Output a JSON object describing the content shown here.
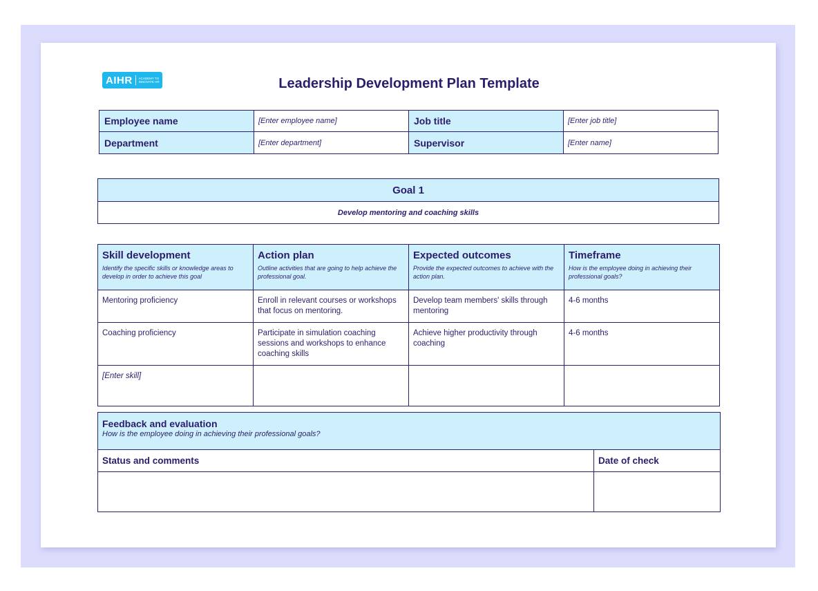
{
  "logo": {
    "text": "AIHR",
    "tagline": "ACADEMY TO INNOVATE HR"
  },
  "title": "Leadership Development Plan Template",
  "info": {
    "employee_label": "Employee name",
    "employee_value": "[Enter employee name]",
    "job_label": "Job title",
    "job_value": "[Enter job title]",
    "department_label": "Department",
    "department_value": "[Enter department]",
    "supervisor_label": "Supervisor",
    "supervisor_value": "[Enter name]"
  },
  "goal": {
    "title": "Goal 1",
    "description": "Develop mentoring and coaching skills"
  },
  "plan": {
    "headers": [
      {
        "title": "Skill development",
        "sub": "Identify the specific skills or knowledge areas to develop in order to achieve this goal"
      },
      {
        "title": "Action plan",
        "sub": "Outline activities that are going to help achieve the professional goal."
      },
      {
        "title": "Expected outcomes",
        "sub": "Provide the expected outcomes to achieve with the action plan."
      },
      {
        "title": "Timeframe",
        "sub": "How is the employee doing in achieving their professional goals?"
      }
    ],
    "rows": [
      [
        "Mentoring proficiency",
        "Enroll in relevant courses or workshops that focus on mentoring.",
        "Develop team members' skills through mentoring",
        "4-6 months"
      ],
      [
        "Coaching proficiency",
        "Participate in simulation coaching sessions and workshops to enhance coaching skills",
        "Achieve higher productivity through coaching",
        "4-6 months"
      ],
      [
        "[Enter skill]",
        "",
        "",
        ""
      ]
    ]
  },
  "feedback": {
    "title": "Feedback and evaluation",
    "sub": "How is the employee doing in achieving their professional goals?",
    "status_label": "Status and comments",
    "date_label": "Date of check"
  },
  "colors": {
    "header_fill": "#cdf0fc",
    "border": "#2a1f6b",
    "text": "#2b1d6b",
    "logo": "#1fb8ee",
    "backdrop": "#dcdcfd"
  }
}
